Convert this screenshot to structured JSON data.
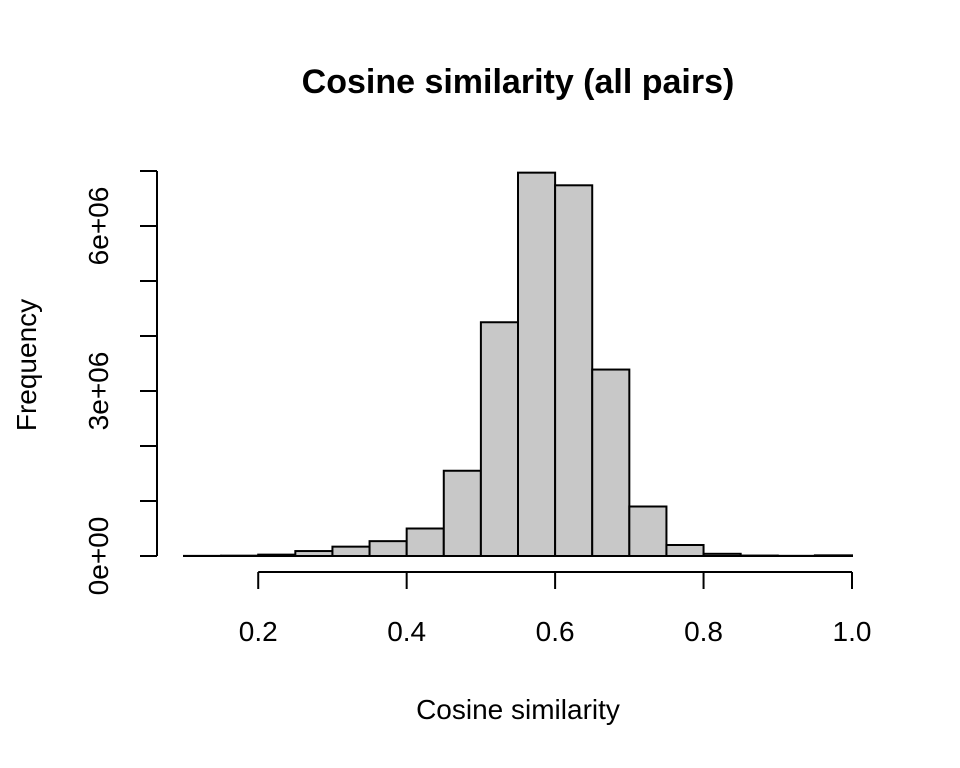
{
  "chart_data": {
    "type": "bar",
    "title": "Cosine similarity (all pairs)",
    "xlabel": "Cosine similarity",
    "ylabel": "Frequency",
    "bin_width": 0.05,
    "bins": [
      {
        "start": 0.1,
        "end": 0.15,
        "count": 2000
      },
      {
        "start": 0.15,
        "end": 0.2,
        "count": 6000
      },
      {
        "start": 0.2,
        "end": 0.25,
        "count": 25000
      },
      {
        "start": 0.25,
        "end": 0.3,
        "count": 90000
      },
      {
        "start": 0.3,
        "end": 0.35,
        "count": 170000
      },
      {
        "start": 0.35,
        "end": 0.4,
        "count": 270000
      },
      {
        "start": 0.4,
        "end": 0.45,
        "count": 500000
      },
      {
        "start": 0.45,
        "end": 0.5,
        "count": 1550000
      },
      {
        "start": 0.5,
        "end": 0.55,
        "count": 4250000
      },
      {
        "start": 0.55,
        "end": 0.6,
        "count": 6970000
      },
      {
        "start": 0.6,
        "end": 0.65,
        "count": 6740000
      },
      {
        "start": 0.65,
        "end": 0.7,
        "count": 3390000
      },
      {
        "start": 0.7,
        "end": 0.75,
        "count": 900000
      },
      {
        "start": 0.75,
        "end": 0.8,
        "count": 200000
      },
      {
        "start": 0.8,
        "end": 0.85,
        "count": 40000
      },
      {
        "start": 0.85,
        "end": 0.9,
        "count": 8000
      },
      {
        "start": 0.9,
        "end": 0.95,
        "count": 3000
      },
      {
        "start": 0.95,
        "end": 1.0,
        "count": 12000
      }
    ],
    "x_ticks": [
      {
        "value": 0.2,
        "label": "0.2"
      },
      {
        "value": 0.4,
        "label": "0.4"
      },
      {
        "value": 0.6,
        "label": "0.6"
      },
      {
        "value": 0.8,
        "label": "0.8"
      },
      {
        "value": 1.0,
        "label": "1.0"
      }
    ],
    "y_ticks": [
      {
        "value": 0,
        "label": "0e+00"
      },
      {
        "value": 1000000,
        "label": ""
      },
      {
        "value": 2000000,
        "label": ""
      },
      {
        "value": 3000000,
        "label": "3e+06"
      },
      {
        "value": 4000000,
        "label": ""
      },
      {
        "value": 5000000,
        "label": ""
      },
      {
        "value": 6000000,
        "label": "6e+06"
      },
      {
        "value": 7000000,
        "label": ""
      }
    ],
    "xlim": [
      0.1,
      1.0
    ],
    "ylim": [
      0,
      7000000
    ],
    "bar_color": "#c8c8c8",
    "edge_color": "#000000",
    "grid": false,
    "legend": "none"
  }
}
